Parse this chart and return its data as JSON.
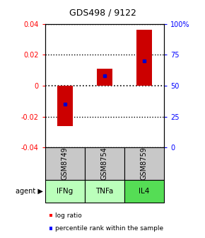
{
  "title": "GDS498 / 9122",
  "samples": [
    "GSM8749",
    "GSM8754",
    "GSM8759"
  ],
  "agents": [
    "IFNg",
    "TNFa",
    "IL4"
  ],
  "log_ratios": [
    -0.026,
    0.011,
    0.036
  ],
  "percentile_ranks": [
    35,
    58,
    70
  ],
  "ylim_left": [
    -0.04,
    0.04
  ],
  "ylim_right": [
    0,
    100
  ],
  "yticks_left": [
    -0.04,
    -0.02,
    0,
    0.02,
    0.04
  ],
  "yticks_right": [
    0,
    25,
    50,
    75,
    100
  ],
  "yticks_right_labels": [
    "0",
    "25",
    "50",
    "75",
    "100%"
  ],
  "bar_color": "#cc0000",
  "percentile_color": "#0000cc",
  "sample_bg_color": "#c8c8c8",
  "agent_colors": [
    "#bbffbb",
    "#bbffbb",
    "#55dd55"
  ],
  "box_bg": "#ffffff",
  "bar_width": 0.4,
  "title_fontsize": 9,
  "tick_fontsize": 7,
  "table_fontsize": 7,
  "legend_fontsize": 6.5
}
